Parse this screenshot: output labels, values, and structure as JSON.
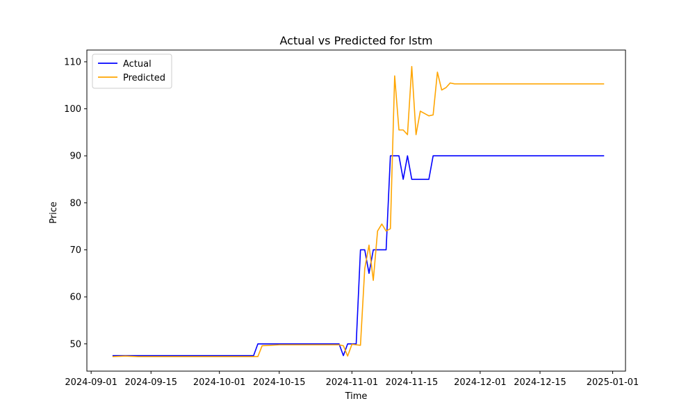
{
  "chart_data": {
    "type": "line",
    "title": "Actual vs Predicted for lstm",
    "xlabel": "Time",
    "ylabel": "Price",
    "x_axis_type": "date",
    "xlim": [
      "2024-08-31",
      "2025-01-04"
    ],
    "ylim": [
      44.2,
      112.5
    ],
    "x_ticks": [
      "2024-09-01",
      "2024-09-15",
      "2024-10-01",
      "2024-10-15",
      "2024-11-01",
      "2024-11-15",
      "2024-12-01",
      "2024-12-15",
      "2025-01-01"
    ],
    "x_tick_labels": [
      "2024-09-01",
      "2024-09-15",
      "2024-10-01",
      "2024-10-15",
      "2024-11-01",
      "2024-11-15",
      "2024-12-01",
      "2024-12-15",
      "2025-01-01"
    ],
    "y_ticks": [
      50,
      60,
      70,
      80,
      90,
      100,
      110
    ],
    "y_tick_labels": [
      "50",
      "60",
      "70",
      "80",
      "90",
      "100",
      "110"
    ],
    "grid": false,
    "legend_position": "top-left",
    "series": [
      {
        "name": "Actual",
        "color": "#0000ff",
        "points": [
          [
            "2024-09-06",
            47.5
          ],
          [
            "2024-10-09",
            47.5
          ],
          [
            "2024-10-10",
            50.0
          ],
          [
            "2024-10-29",
            50.0
          ],
          [
            "2024-10-30",
            47.5
          ],
          [
            "2024-10-31",
            50.0
          ],
          [
            "2024-11-02",
            50.0
          ],
          [
            "2024-11-03",
            70.0
          ],
          [
            "2024-11-04",
            70.0
          ],
          [
            "2024-11-05",
            65.0
          ],
          [
            "2024-11-06",
            70.0
          ],
          [
            "2024-11-09",
            70.0
          ],
          [
            "2024-11-10",
            90.0
          ],
          [
            "2024-11-12",
            90.0
          ],
          [
            "2024-11-13",
            85.0
          ],
          [
            "2024-11-14",
            90.0
          ],
          [
            "2024-11-15",
            85.0
          ],
          [
            "2024-11-19",
            85.0
          ],
          [
            "2024-11-20",
            90.0
          ],
          [
            "2024-12-30",
            90.0
          ]
        ]
      },
      {
        "name": "Predicted",
        "color": "#ffa500",
        "points": [
          [
            "2024-09-06",
            47.3
          ],
          [
            "2024-09-09",
            47.4
          ],
          [
            "2024-09-12",
            47.3
          ],
          [
            "2024-10-10",
            47.3
          ],
          [
            "2024-10-11",
            49.6
          ],
          [
            "2024-10-13",
            49.7
          ],
          [
            "2024-10-15",
            49.8
          ],
          [
            "2024-10-29",
            49.8
          ],
          [
            "2024-10-30",
            49.6
          ],
          [
            "2024-10-31",
            47.4
          ],
          [
            "2024-11-01",
            49.9
          ],
          [
            "2024-11-02",
            49.8
          ],
          [
            "2024-11-03",
            49.7
          ],
          [
            "2024-11-04",
            66.0
          ],
          [
            "2024-11-05",
            71.0
          ],
          [
            "2024-11-06",
            63.5
          ],
          [
            "2024-11-07",
            74.0
          ],
          [
            "2024-11-08",
            75.5
          ],
          [
            "2024-11-09",
            74.0
          ],
          [
            "2024-11-10",
            74.5
          ],
          [
            "2024-11-11",
            107.0
          ],
          [
            "2024-11-12",
            95.5
          ],
          [
            "2024-11-13",
            95.5
          ],
          [
            "2024-11-14",
            94.5
          ],
          [
            "2024-11-15",
            109.0
          ],
          [
            "2024-11-16",
            94.5
          ],
          [
            "2024-11-17",
            99.5
          ],
          [
            "2024-11-18",
            99.0
          ],
          [
            "2024-11-19",
            98.5
          ],
          [
            "2024-11-20",
            98.7
          ],
          [
            "2024-11-21",
            107.8
          ],
          [
            "2024-11-22",
            104.0
          ],
          [
            "2024-11-23",
            104.5
          ],
          [
            "2024-11-24",
            105.5
          ],
          [
            "2024-11-25",
            105.3
          ],
          [
            "2024-12-30",
            105.3
          ]
        ]
      }
    ]
  }
}
